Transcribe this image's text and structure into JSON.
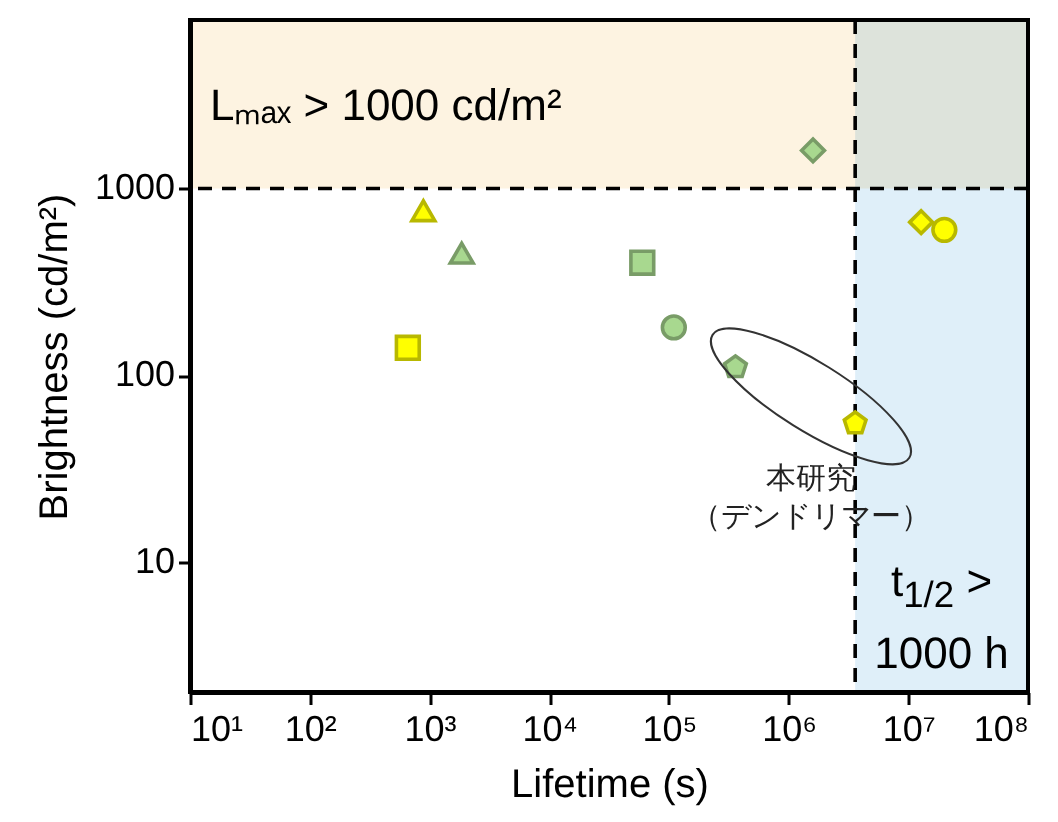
{
  "chart_data": {
    "type": "scatter",
    "log": "xy",
    "xlabel": "Lifetime (s)",
    "ylabel": "Brightness (cd/m²)",
    "xlim": [
      10,
      100000000
    ],
    "ylim": [
      2,
      8000
    ],
    "xticks": [
      {
        "value": 10,
        "label": "10¹"
      },
      {
        "value": 100,
        "label": "10²"
      },
      {
        "value": 1000,
        "label": "10³"
      },
      {
        "value": 10000,
        "label": "10⁴"
      },
      {
        "value": 100000,
        "label": "10⁵"
      },
      {
        "value": 1000000,
        "label": "10⁶"
      },
      {
        "value": 10000000,
        "label": "10⁷"
      },
      {
        "value": 100000000,
        "label": "10⁸"
      }
    ],
    "yticks": [
      10,
      100,
      1000
    ],
    "grid": false,
    "series": [
      {
        "color": "#ffff00",
        "marker": "triangle",
        "x": [
          890
        ],
        "values": [
          760
        ]
      },
      {
        "color": "#a8d88f",
        "marker": "triangle",
        "x": [
          1860
        ],
        "values": [
          450
        ]
      },
      {
        "color": "#ffff00",
        "marker": "square",
        "x": [
          660
        ],
        "values": [
          140
        ]
      },
      {
        "color": "#a8d88f",
        "marker": "square",
        "x": [
          60000
        ],
        "values": [
          400
        ]
      },
      {
        "color": "#a8d88f",
        "marker": "diamond",
        "x": [
          1600000
        ],
        "values": [
          1600
        ]
      },
      {
        "color": "#a8d88f",
        "marker": "circle",
        "x": [
          110000
        ],
        "values": [
          180
        ]
      },
      {
        "color": "#a8d88f",
        "x": [
          360000
        ],
        "values": [
          110
        ]
      },
      {
        "color": "#ffff00",
        "x": [
          3600000
        ],
        "values": [
          55
        ]
      },
      {
        "color": "#ffff00",
        "marker": "diamond",
        "x": [
          12800000
        ],
        "values": [
          660
        ]
      },
      {
        "color": "#ffff00",
        "marker": "circle",
        "x": [
          20000000
        ],
        "values": [
          600
        ]
      }
    ],
    "bands": [
      {
        "axis": "y",
        "from": 1000,
        "to": 8000,
        "label": "Lₘₐₓ > 1000 cd/m²",
        "color": "#fdf3e1"
      },
      {
        "axis": "x",
        "from": 3600000,
        "to": 100000000,
        "label": "t$_{1/2}$ > 1000 h",
        "color": "#dfeff9"
      }
    ],
    "ref_lines": [
      {
        "axis": "y",
        "value": 1000,
        "line_style": "dashed",
        "color": "#000000"
      },
      {
        "axis": "x",
        "value": 3600000,
        "line_style": "dashed",
        "color": "#000000"
      }
    ],
    "annotations": [
      "本研究（デンドリマー）"
    ]
  }
}
